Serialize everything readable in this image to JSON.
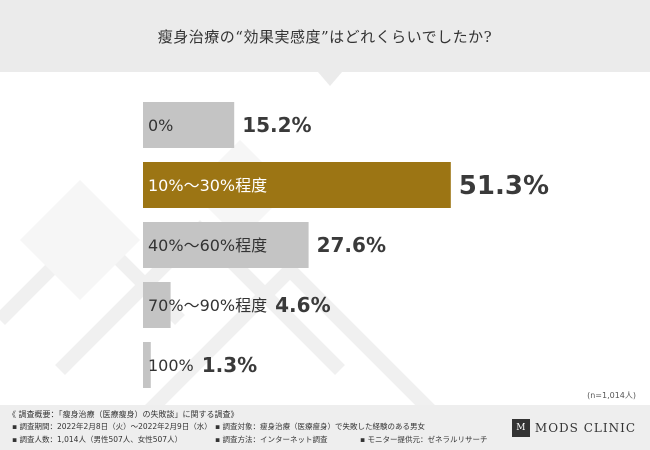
{
  "header": {
    "title": "瘦身治療の“効果実感度”はどれくらいでしたか?"
  },
  "chart_data": {
    "type": "bar",
    "orientation": "horizontal",
    "title": "瘦身治療の“効果実感度”はどれくらいでしたか?",
    "categories": [
      "0%",
      "10%〜30%程度",
      "40%〜60%程度",
      "70%〜90%程度",
      "100%"
    ],
    "values": [
      15.2,
      51.3,
      27.6,
      4.6,
      1.3
    ],
    "value_labels": [
      "15.2%",
      "51.3%",
      "27.6%",
      "4.6%",
      "1.3%"
    ],
    "highlight_index": 1,
    "colors": {
      "default": "#c4c4c4",
      "highlight": "#9c7514",
      "value_text": "#3a3a3a"
    },
    "xlim": [
      0,
      100
    ],
    "grid": false,
    "legend": "none"
  },
  "sample_note": "(n=1,014人)",
  "survey": {
    "title": "《 調査概要：「瘦身治療（医療瘦身）の失敗談」に関する調査》",
    "period": "調査期間：2022年2月8日（火）〜2022年2月9日（水）",
    "respondents": "調査人数：1,014人（男性507人、女性507人）",
    "target": "調査対象：瘦身治療（医療瘦身）で失敗した経験のある男女",
    "method": "調査方法：インターネット調査",
    "provider": "モニター提供元：ゼネラルリサーチ"
  },
  "logo": {
    "mark": "M",
    "text": "MODS CLINIC"
  }
}
